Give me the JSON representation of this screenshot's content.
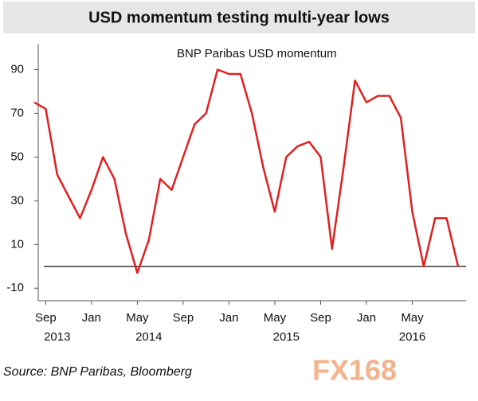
{
  "chart_data": {
    "type": "line",
    "title": "USD momentum testing multi-year lows",
    "subtitle": "BNP Paribas USD momentum",
    "source": "Source:  BNP Paribas, Bloomberg",
    "watermark": "FX168",
    "x": [
      "2013-08",
      "2013-09",
      "2013-10",
      "2013-11",
      "2013-12",
      "2014-01",
      "2014-02",
      "2014-03",
      "2014-04",
      "2014-05",
      "2014-06",
      "2014-07",
      "2014-08",
      "2014-09",
      "2014-10",
      "2014-11",
      "2014-12",
      "2015-01",
      "2015-02",
      "2015-03",
      "2015-04",
      "2015-05",
      "2015-06",
      "2015-07",
      "2015-08",
      "2015-09",
      "2015-10",
      "2015-11",
      "2015-12",
      "2016-01",
      "2016-02",
      "2016-03",
      "2016-04",
      "2016-05",
      "2016-06",
      "2016-07",
      "2016-08",
      "2016-09"
    ],
    "series": [
      {
        "name": "BNP Paribas USD momentum",
        "color": "#e02020",
        "values": [
          75,
          72,
          42,
          32,
          22,
          35,
          50,
          40,
          15,
          -3,
          12,
          40,
          35,
          50,
          65,
          70,
          90,
          88,
          88,
          70,
          45,
          25,
          50,
          55,
          57,
          50,
          8,
          45,
          85,
          75,
          78,
          78,
          68,
          25,
          0,
          22,
          22,
          0
        ]
      }
    ],
    "xlim": [
      "2013-08",
      "2016-09"
    ],
    "xticks": [
      {
        "value": "2013-09",
        "label": "Sep"
      },
      {
        "value": "2014-01",
        "label": "Jan"
      },
      {
        "value": "2014-05",
        "label": "May"
      },
      {
        "value": "2014-09",
        "label": "Sep"
      },
      {
        "value": "2015-01",
        "label": "Jan"
      },
      {
        "value": "2015-05",
        "label": "May"
      },
      {
        "value": "2015-09",
        "label": "Sep"
      },
      {
        "value": "2016-01",
        "label": "Jan"
      },
      {
        "value": "2016-05",
        "label": "May"
      }
    ],
    "year_labels": [
      {
        "value": "2013-10",
        "label": "2013"
      },
      {
        "value": "2014-06",
        "label": "2014"
      },
      {
        "value": "2015-06",
        "label": "2015"
      },
      {
        "value": "2016-05",
        "label": "2016"
      }
    ],
    "ylim": [
      -15,
      100
    ],
    "yticks": [
      -10,
      10,
      30,
      50,
      70,
      90
    ],
    "reference_line": 0
  }
}
